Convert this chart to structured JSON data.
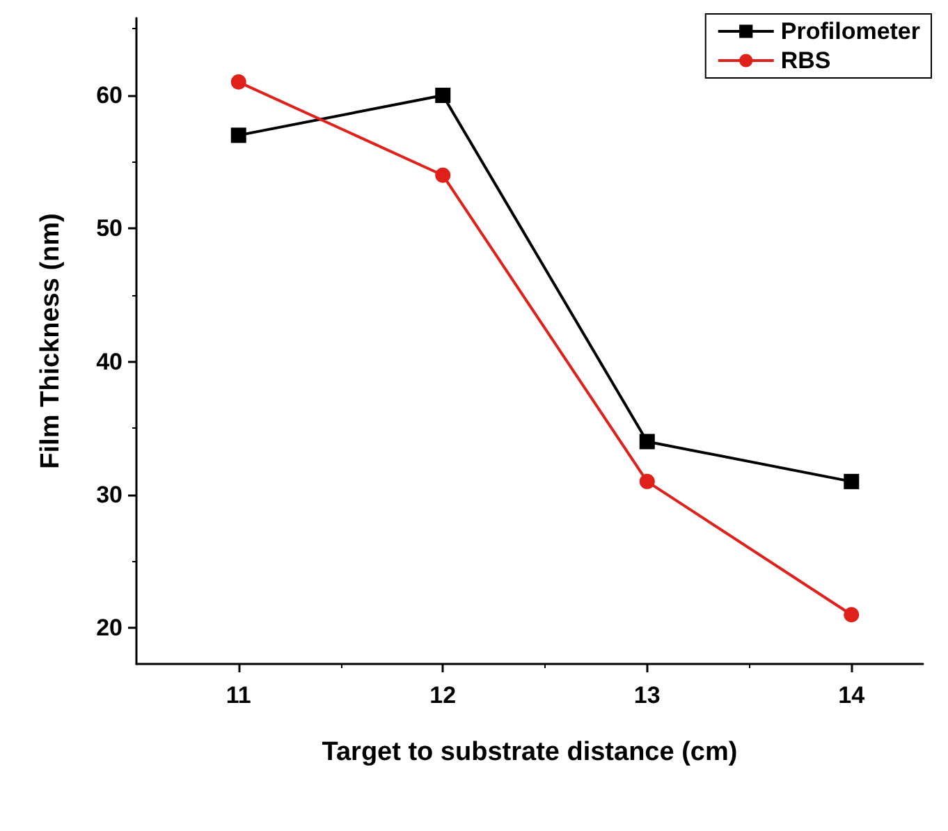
{
  "chart_data": {
    "type": "line",
    "xlabel": "Target to substrate distance (cm)",
    "ylabel": "Film Thickness (nm)",
    "x": [
      11,
      12,
      13,
      14
    ],
    "series": [
      {
        "name": "Profilometer",
        "color": "#000000",
        "marker": "square",
        "values": [
          57,
          60,
          34,
          31
        ]
      },
      {
        "name": "RBS",
        "color": "#e0201b",
        "marker": "circle",
        "values": [
          61,
          54,
          31,
          21
        ]
      }
    ],
    "xlim": [
      10.5,
      14.35
    ],
    "xticks": [
      11,
      12,
      13,
      14
    ],
    "ylim": [
      17.3,
      65.8
    ],
    "yticks": [
      20,
      30,
      40,
      50,
      60
    ],
    "grid": false,
    "legend": "top right",
    "line_style": "solid"
  }
}
